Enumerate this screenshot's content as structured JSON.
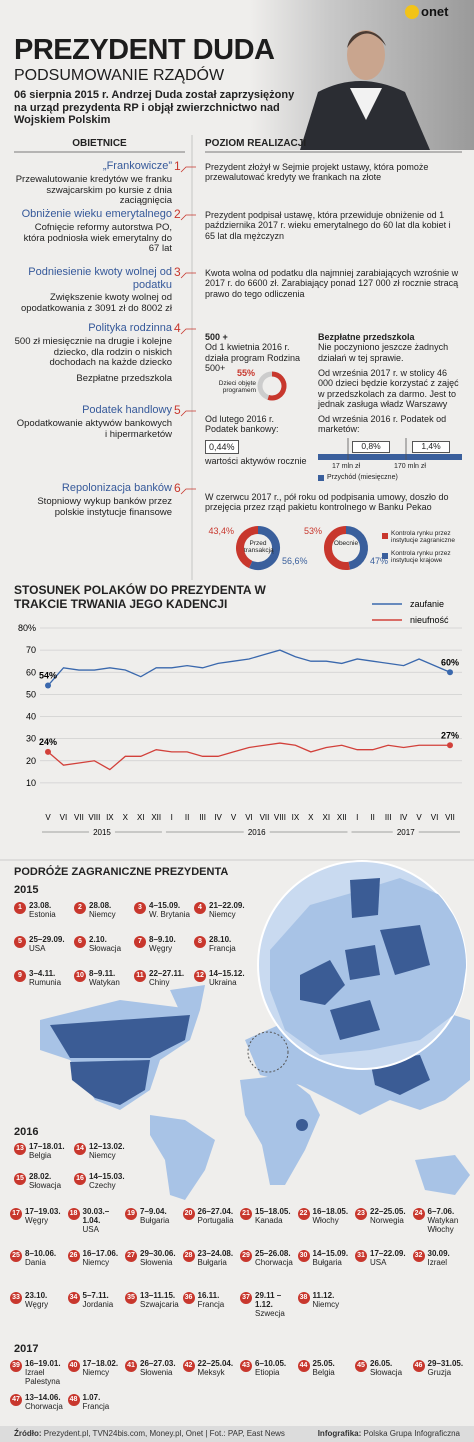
{
  "header": {
    "logo": "onet",
    "title": "PREZYDENT DUDA",
    "subtitle": "PODSUMOWANIE RZĄDÓW",
    "intro": "06 sierpnia 2015 r. Andrzej Duda został zaprzysiężony na urząd prezydenta RP i objął zwierzchnictwo nad Wojskiem Polskim"
  },
  "promises": {
    "headers": [
      "OBIETNICE",
      "POZIOM REALIZACJI"
    ],
    "items": [
      {
        "number": 1,
        "title": "„Frankowicze”",
        "description": [
          "Przewalutowanie kredytów we franku szwajcarskim po kursie z dnia zaciągnięcia"
        ],
        "realization": "Prezydent złożył w Sejmie projekt ustawy, która pomoże przewalutować kredyty we frankach na złote"
      },
      {
        "number": 2,
        "title": "Obniżenie wieku emerytalnego",
        "description": [
          "Cofnięcie reformy autorstwa PO, która podniosła wiek emerytalny do 67 lat"
        ],
        "realization": "Prezydent podpisał ustawę, która przewiduje obniżenie od 1 października 2017 r. wieku emerytalnego do 60 lat dla kobiet i 65 lat dla mężczyzn"
      },
      {
        "number": 3,
        "title": "Podniesienie kwoty wolnej od podatku",
        "description": [
          "Zwiększenie kwoty wolnej od opodatkowania z 3091 zł do 8002 zł"
        ],
        "realization": "Kwota wolna od podatku dla najmniej zarabiających wzrośnie w 2017 r. do 6600 zł. Zarabiający ponad 127 000 zł rocznie stracą prawo do tego odliczenia"
      },
      {
        "number": 4,
        "title": "Polityka rodzinna",
        "description": [
          "500 zł miesięcznie na drugie i kolejne dziecko, dla rodzin o niskich dochodach na każde dziecko",
          "Bezpłatne przedszkola"
        ],
        "realization": {
          "program": {
            "title": "500 +",
            "text": "Od 1 kwietnia 2016 r. działa program Rodzina 500+",
            "share": 55,
            "share_label": "55%",
            "share_caption": "Dzieci objęte programem",
            "color": "#c8372d"
          },
          "preschool": {
            "title": "Bezpłatne przedszkola",
            "text": [
              "Nie poczyniono jeszcze żadnych działań w tej sprawie.",
              "Od września 2017 r. w stolicy 46 000 dzieci będzie korzystać z zajęć w przedszkolach za darmo. Jest to jednak zasługa władz Warszawy"
            ]
          }
        }
      },
      {
        "number": 5,
        "title": "Podatek handlowy",
        "description": [
          "Opodatkowanie aktywów bankowych i hipermarketów"
        ],
        "realization": {
          "bank": {
            "text": "Od lutego 2016 r. Podatek bankowy:",
            "rate": "0,44%",
            "caption": "wartości aktywów rocznie"
          },
          "market": {
            "text": "Od września 2016 r. Podatek od marketów:",
            "rates": [
              "0,8%",
              "1,4%"
            ],
            "thresholds": [
              "17 mln zł",
              "170 mln zł"
            ],
            "legend": "Przychód (miesięczne)"
          }
        }
      },
      {
        "number": 6,
        "title": "Repolonizacja banków",
        "description": [
          "Stopniowy wykup banków przez polskie instytucje finansowe"
        ],
        "realization": {
          "text": "W czerwcu 2017 r., pół roku od podpisania umowy, doszło do przejęcia przez rząd pakietu kontrolnego w Banku Pekao",
          "donuts": [
            {
              "label": "Przed transakcją",
              "values": [
                43.4,
                56.6
              ],
              "value_labels": [
                "43,4%",
                "56,6%"
              ]
            },
            {
              "label": "Obecnie",
              "values": [
                53,
                47
              ],
              "value_labels": [
                "53%",
                "47%"
              ]
            }
          ],
          "legend": [
            {
              "name": "Kontrola rynku przez instytucje zagraniczne",
              "color": "#c8372d"
            },
            {
              "name": "Kontrola rynku przez instytucje krajowe",
              "color": "#3a5f9c"
            }
          ]
        }
      }
    ]
  },
  "chart_data": {
    "type": "line",
    "title": "STOSUNEK POLAKÓW DO PREZYDENTA W TRAKCIE TRWANIA JEGO KADENCJI",
    "category_groups": [
      {
        "label": "2015",
        "categories": [
          "V",
          "VI",
          "VII",
          "VIII",
          "IX",
          "X",
          "XI",
          "XII"
        ]
      },
      {
        "label": "2016",
        "categories": [
          "I",
          "II",
          "III",
          "IV",
          "V",
          "VI",
          "VII",
          "VIII",
          "IX",
          "X",
          "XI",
          "XII"
        ]
      },
      {
        "label": "2017",
        "categories": [
          "I",
          "II",
          "III",
          "IV",
          "V",
          "VI",
          "VII"
        ]
      }
    ],
    "series": [
      {
        "name": "zaufanie",
        "color": "#3a68ad",
        "values": [
          54,
          62,
          61,
          61,
          62,
          61,
          58,
          62,
          62,
          63,
          62,
          64,
          65,
          66,
          68,
          70,
          67,
          65,
          65,
          64,
          66,
          65,
          64,
          63,
          66,
          63,
          60
        ],
        "value_labels": [
          "54%",
          null,
          null,
          null,
          null,
          null,
          null,
          null,
          null,
          null,
          null,
          null,
          null,
          null,
          null,
          null,
          null,
          null,
          null,
          null,
          null,
          null,
          null,
          null,
          null,
          null,
          "60%"
        ]
      },
      {
        "name": "nieufność",
        "color": "#d2403a",
        "values": [
          24,
          18,
          19,
          20,
          16,
          22,
          22,
          25,
          24,
          24,
          22,
          22,
          24,
          26,
          27,
          28,
          27,
          24,
          26,
          27,
          25,
          25,
          27,
          26,
          27,
          27,
          27
        ],
        "value_labels": [
          "24%",
          null,
          null,
          null,
          null,
          null,
          null,
          null,
          null,
          null,
          null,
          null,
          null,
          null,
          null,
          null,
          null,
          null,
          null,
          null,
          null,
          null,
          null,
          null,
          null,
          null,
          "27%"
        ]
      }
    ],
    "ylim": [
      0,
      80
    ],
    "yticks": [
      10,
      20,
      30,
      40,
      50,
      60,
      70,
      {
        "value": 80,
        "label": "80%"
      }
    ],
    "grid": true
  },
  "travels": {
    "title": "PODRÓŻE ZAGRANICZNE PREZYDENTA",
    "years": [
      {
        "year": "2015",
        "trips": [
          {
            "n": 1,
            "date": "23.08.",
            "place": "Estonia"
          },
          {
            "n": 2,
            "date": "28.08.",
            "place": "Niemcy"
          },
          {
            "n": 3,
            "date": "4–15.09.",
            "place": "W. Brytania"
          },
          {
            "n": 4,
            "date": "21–22.09.",
            "place": "Niemcy"
          },
          {
            "n": 5,
            "date": "25–29.09.",
            "place": "USA"
          },
          {
            "n": 6,
            "date": "2.10.",
            "place": "Słowacja"
          },
          {
            "n": 7,
            "date": "8–9.10.",
            "place": "Węgry"
          },
          {
            "n": 8,
            "date": "28.10.",
            "place": "Francja"
          },
          {
            "n": 9,
            "date": "3–4.11.",
            "place": "Rumunia"
          },
          {
            "n": 10,
            "date": "8–9.11.",
            "place": "Watykan"
          },
          {
            "n": 11,
            "date": "22–27.11.",
            "place": "Chiny"
          },
          {
            "n": 12,
            "date": "14–15.12.",
            "place": "Ukraina"
          }
        ]
      },
      {
        "year": "2016",
        "trips": [
          {
            "n": 13,
            "date": "17–18.01.",
            "place": "Belgia"
          },
          {
            "n": 14,
            "date": "12–13.02.",
            "place": "Niemcy"
          },
          {
            "n": 15,
            "date": "28.02.",
            "place": "Słowacja"
          },
          {
            "n": 16,
            "date": "14–15.03.",
            "place": "Czechy"
          },
          {
            "n": 17,
            "date": "17–19.03.",
            "place": "Węgry"
          },
          {
            "n": 18,
            "date": "30.03.–1.04.",
            "place": "USA"
          },
          {
            "n": 19,
            "date": "7–9.04.",
            "place": "Bułgaria"
          },
          {
            "n": 20,
            "date": "26–27.04.",
            "place": "Portugalia"
          },
          {
            "n": 21,
            "date": "15–18.05.",
            "place": "Kanada"
          },
          {
            "n": 22,
            "date": "16–18.05.",
            "place": "Włochy"
          },
          {
            "n": 23,
            "date": "22–25.05.",
            "place": "Norwegia"
          },
          {
            "n": 24,
            "date": "6–7.06.",
            "place": "Watykan Włochy"
          },
          {
            "n": 25,
            "date": "8–10.06.",
            "place": "Dania"
          },
          {
            "n": 26,
            "date": "16–17.06.",
            "place": "Niemcy"
          },
          {
            "n": 27,
            "date": "29–30.06.",
            "place": "Słowenia"
          },
          {
            "n": 28,
            "date": "23–24.08.",
            "place": "Bułgaria"
          },
          {
            "n": 29,
            "date": "25–26.08.",
            "place": "Chorwacja"
          },
          {
            "n": 30,
            "date": "14–15.09.",
            "place": "Bułgaria"
          },
          {
            "n": 31,
            "date": "17–22.09.",
            "place": "USA"
          },
          {
            "n": 32,
            "date": "30.09.",
            "place": "Izrael"
          },
          {
            "n": 33,
            "date": "23.10.",
            "place": "Węgry"
          },
          {
            "n": 34,
            "date": "5–7.11.",
            "place": "Jordania"
          },
          {
            "n": 35,
            "date": "13–11.15.",
            "place": "Szwajcaria"
          },
          {
            "n": 36,
            "date": "16.11.",
            "place": "Francja"
          },
          {
            "n": 37,
            "date": "29.11 –1.12.",
            "place": "Szwecja"
          },
          {
            "n": 38,
            "date": "11.12.",
            "place": "Niemcy"
          }
        ]
      },
      {
        "year": "2017",
        "trips": [
          {
            "n": 39,
            "date": "16–19.01.",
            "place": "Izrael Palestyna"
          },
          {
            "n": 40,
            "date": "17–18.02.",
            "place": "Niemcy"
          },
          {
            "n": 41,
            "date": "26–27.03.",
            "place": "Słowenia"
          },
          {
            "n": 42,
            "date": "22–25.04.",
            "place": "Meksyk"
          },
          {
            "n": 43,
            "date": "6–10.05.",
            "place": "Etiopia"
          },
          {
            "n": 44,
            "date": "25.05.",
            "place": "Belgia"
          },
          {
            "n": 45,
            "date": "26.05.",
            "place": "Słowacja"
          },
          {
            "n": 46,
            "date": "29–31.05.",
            "place": "Gruzja"
          },
          {
            "n": 47,
            "date": "13–14.06.",
            "place": "Chorwacja"
          },
          {
            "n": 48,
            "date": "1.07.",
            "place": "Francja"
          }
        ]
      }
    ]
  },
  "footer": {
    "source_label": "Źródło:",
    "source": "Prezydent.pl, TVN24bis.com, Money.pl, Onet | Fot.: PAP, East News",
    "credit_label": "Infografika:",
    "credit": "Polska Grupa Infograficzna"
  }
}
